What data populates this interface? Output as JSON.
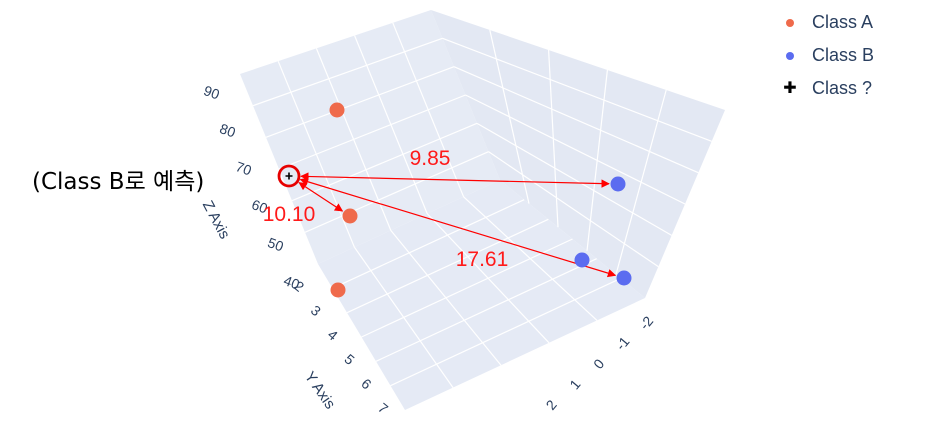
{
  "chart_data": {
    "type": "scatter3d",
    "axes": {
      "x": {
        "ticks": [
          "2",
          "1",
          "0",
          "-1",
          "-2"
        ]
      },
      "y": {
        "title": "Y Axis",
        "ticks": [
          "2",
          "3",
          "4",
          "5",
          "6",
          "7"
        ]
      },
      "z": {
        "title": "Z Axis",
        "ticks": [
          "40",
          "50",
          "60",
          "70",
          "80",
          "90"
        ]
      }
    },
    "series": [
      {
        "name": "Class A",
        "color": "#EF6A4B",
        "marker": "circle",
        "points": [
          {
            "z": 86
          },
          {
            "z": 62
          },
          {
            "z": 40
          }
        ]
      },
      {
        "name": "Class B",
        "color": "#5B6CF0",
        "marker": "circle",
        "points": [
          {
            "z": 70
          },
          {
            "z": 50
          },
          {
            "z": 45
          }
        ]
      },
      {
        "name": "Class ?",
        "color": "#000000",
        "marker": "cross",
        "points": [
          {
            "z": 70
          }
        ]
      }
    ],
    "distances": [
      "9.85",
      "10.10",
      "17.61"
    ],
    "grid": true,
    "legend_position": "top-right",
    "annotation": "(Class B로 예측)",
    "highlight_color": "#E60000",
    "arrow_color": "#FF0000"
  }
}
